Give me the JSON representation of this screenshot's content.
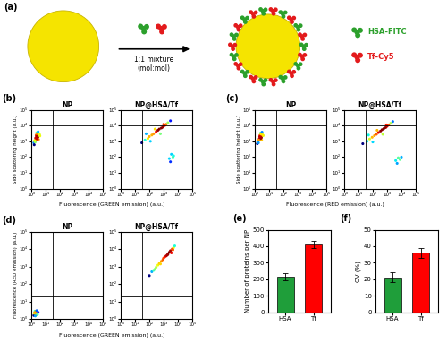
{
  "schematic": {
    "panel": "(a)",
    "mixture": "1:1 mixture\n(mol:mol)",
    "legend": [
      {
        "name": "HSA-FITC",
        "color": "#2ca02c"
      },
      {
        "name": "Tf-Cy5",
        "color": "#e31a1c"
      }
    ]
  },
  "flow_panels": [
    {
      "panel": "(b)",
      "xlabel": "Fluorescence (GREEN emission) (a.u.)",
      "ylabel": "Side scattering height (a.u.)",
      "log": true,
      "xlim": [
        1,
        100000
      ],
      "ylim": [
        1,
        100000
      ],
      "xticks": [
        {
          "value": 1,
          "label": "10⁰"
        },
        {
          "value": 10,
          "label": "10¹"
        },
        {
          "value": 100,
          "label": "10²"
        },
        {
          "value": 1000,
          "label": "10³"
        },
        {
          "value": 10000,
          "label": "10⁴"
        },
        {
          "value": 100000,
          "label": "10⁵"
        }
      ],
      "yticks": [
        {
          "value": 1,
          "label": "10⁰"
        },
        {
          "value": 10,
          "label": "10¹"
        },
        {
          "value": 100,
          "label": "10²"
        },
        {
          "value": 1000,
          "label": "10³"
        },
        {
          "value": 10000,
          "label": "10⁴"
        },
        {
          "value": 100000,
          "label": "10⁵"
        }
      ],
      "gate_x": 30,
      "gate_y": 10000,
      "charts": [
        {
          "type": "scatter",
          "title": "NP",
          "x": [
            1.5,
            2,
            2.5,
            3,
            1.8,
            2.2,
            3.5,
            2.8,
            1.6,
            4,
            2.4,
            3.2,
            2.0,
            2.6,
            1.9,
            3.0,
            2.3,
            2.7,
            1.7,
            3.8
          ],
          "y": [
            800,
            1200,
            1500,
            2000,
            1000,
            2500,
            3000,
            1800,
            600,
            2200,
            3500,
            1300,
            1600,
            2800,
            900,
            4000,
            2100,
            1400,
            1100,
            2600
          ]
        },
        {
          "type": "scatter",
          "title": "NP@HSA/Tf",
          "x": [
            30,
            50,
            80,
            100,
            150,
            200,
            300,
            400,
            500,
            700,
            900,
            1200,
            1500,
            2000,
            3000,
            60,
            120,
            250,
            600,
            1000,
            2500,
            3500,
            4500,
            3000,
            5000
          ],
          "y": [
            800,
            1200,
            1500,
            2000,
            2500,
            3000,
            4000,
            5000,
            6000,
            7000,
            8000,
            10000,
            12000,
            15000,
            20000,
            3000,
            1000,
            6000,
            3000,
            12000,
            80,
            150,
            100,
            50,
            120
          ]
        }
      ]
    },
    {
      "panel": "(c)",
      "xlabel": "Fluorescence (RED emission) (a.u.)",
      "ylabel": "Side scattering height (a.u.)",
      "log": true,
      "xlim": [
        1,
        100000
      ],
      "ylim": [
        1,
        100000
      ],
      "xticks": [
        {
          "value": 1,
          "label": "10⁰"
        },
        {
          "value": 10,
          "label": "10¹"
        },
        {
          "value": 100,
          "label": "10²"
        },
        {
          "value": 1000,
          "label": "10³"
        },
        {
          "value": 10000,
          "label": "10⁴"
        },
        {
          "value": 100000,
          "label": "10⁵"
        }
      ],
      "yticks": [
        {
          "value": 1,
          "label": "10⁰"
        },
        {
          "value": 10,
          "label": "10¹"
        },
        {
          "value": 100,
          "label": "10²"
        },
        {
          "value": 1000,
          "label": "10³"
        },
        {
          "value": 10000,
          "label": "10⁴"
        },
        {
          "value": 100000,
          "label": "10⁵"
        }
      ],
      "gate_x": 30,
      "gate_y": 10000,
      "charts": [
        {
          "type": "scatter",
          "title": "NP",
          "x": [
            1.6,
            2.1,
            2.4,
            3.1,
            1.7,
            2.3,
            3.3,
            2.9,
            1.5,
            3.9,
            2.5,
            3.0,
            2.1,
            2.7,
            1.8,
            3.2,
            2.2,
            2.6,
            1.9,
            3.6
          ],
          "y": [
            900,
            1300,
            1600,
            2100,
            1000,
            2400,
            3100,
            1700,
            700,
            2300,
            3300,
            1200,
            1500,
            2900,
            800,
            3800,
            2000,
            1500,
            1200,
            2500
          ]
        },
        {
          "type": "scatter",
          "title": "NP@HSA/Tf",
          "x": [
            20,
            40,
            60,
            90,
            130,
            180,
            250,
            350,
            450,
            600,
            800,
            1000,
            1300,
            1800,
            2500,
            50,
            100,
            200,
            500,
            900,
            4000,
            6000,
            8000,
            5000,
            10000
          ],
          "y": [
            700,
            1000,
            1400,
            1800,
            2300,
            2800,
            3600,
            4500,
            5500,
            6500,
            7500,
            9000,
            11000,
            14000,
            18000,
            2500,
            900,
            5000,
            2800,
            11000,
            60,
            90,
            70,
            40,
            100
          ]
        }
      ]
    },
    {
      "panel": "(d)",
      "xlabel": "Fluorescence (GREEN emission) (a.u.)",
      "ylabel": "Fluorescence (RED emission) (a.u.)",
      "log": true,
      "xlim": [
        1,
        100000
      ],
      "ylim": [
        1,
        100000
      ],
      "xticks": [
        {
          "value": 1,
          "label": "10⁰"
        },
        {
          "value": 10,
          "label": "10¹"
        },
        {
          "value": 100,
          "label": "10²"
        },
        {
          "value": 1000,
          "label": "10³"
        },
        {
          "value": 10000,
          "label": "10⁴"
        },
        {
          "value": 100000,
          "label": "10⁵"
        }
      ],
      "yticks": [
        {
          "value": 1,
          "label": "10⁰"
        },
        {
          "value": 10,
          "label": "10¹"
        },
        {
          "value": 100,
          "label": "10²"
        },
        {
          "value": 1000,
          "label": "10³"
        },
        {
          "value": 10000,
          "label": "10⁴"
        },
        {
          "value": 100000,
          "label": "10⁵"
        }
      ],
      "gate_x": 30,
      "gate_y": 20,
      "charts": [
        {
          "type": "scatter",
          "title": "NP",
          "x": [
            1.5,
            2,
            2.5,
            1.8,
            2.2,
            3,
            1.6,
            2.7,
            2.1,
            1.9,
            2.4,
            1.7
          ],
          "y": [
            1.6,
            2.2,
            2.0,
            2.8,
            1.7,
            2.4,
            2.1,
            1.8,
            2.6,
            1.5,
            3.0,
            2.3
          ]
        },
        {
          "type": "scatter",
          "title": "NP@HSA/Tf",
          "x": [
            100,
            150,
            200,
            300,
            400,
            500,
            700,
            900,
            1200,
            1500,
            2000,
            2500,
            3000,
            4000,
            5000,
            250,
            600,
            1000,
            1800,
            3500,
            4500,
            6000
          ],
          "y": [
            300,
            500,
            600,
            900,
            1200,
            1500,
            2000,
            2500,
            3500,
            4000,
            5000,
            6500,
            8000,
            10000,
            12000,
            700,
            1400,
            3000,
            4500,
            6000,
            9000,
            15000
          ]
        }
      ]
    }
  ],
  "chart_data": [
    {
      "type": "bar",
      "panel": "(e)",
      "ylabel": "Number of proteins per NP",
      "categories": [
        "HSA",
        "Tf"
      ],
      "values": [
        215,
        410
      ],
      "errors": [
        22,
        20
      ],
      "colors": [
        "#1f9e3a",
        "#ff0000"
      ],
      "ylim": [
        0,
        500
      ],
      "yticks": [
        0,
        100,
        200,
        300,
        400,
        500
      ]
    },
    {
      "type": "bar",
      "panel": "(f)",
      "ylabel": "CV (%)",
      "categories": [
        "HSA",
        "Tf"
      ],
      "values": [
        21,
        36
      ],
      "errors": [
        3,
        3
      ],
      "colors": [
        "#1f9e3a",
        "#ff0000"
      ],
      "ylim": [
        0,
        50
      ],
      "yticks": [
        0,
        10,
        20,
        30,
        40,
        50
      ]
    }
  ]
}
